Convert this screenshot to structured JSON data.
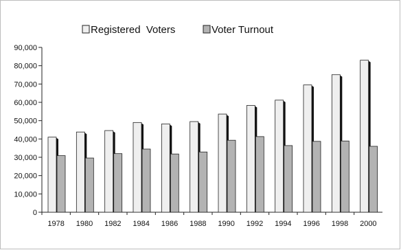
{
  "chart_data": {
    "type": "bar",
    "categories": [
      "1978",
      "1980",
      "1982",
      "1984",
      "1986",
      "1988",
      "1990",
      "1992",
      "1994",
      "1996",
      "1998",
      "2000"
    ],
    "series": [
      {
        "name": "Registered  Voters",
        "color": "#efefef",
        "values": [
          41000,
          43800,
          44600,
          49000,
          48200,
          49500,
          53600,
          58300,
          61200,
          69500,
          75100,
          83000
        ]
      },
      {
        "name": "Voter Turnout",
        "color": "#b3b3b3",
        "values": [
          30900,
          29600,
          32000,
          34500,
          31800,
          32900,
          39300,
          41300,
          36400,
          38700,
          38900,
          36000
        ]
      }
    ],
    "ylim": [
      0,
      90000
    ],
    "yticks": [
      "0",
      "10,000",
      "20,000",
      "30,000",
      "40,000",
      "50,000",
      "60,000",
      "70,000",
      "80,000",
      "90,000"
    ],
    "legend_position": "top",
    "grid": false,
    "style": "3d-bars"
  }
}
